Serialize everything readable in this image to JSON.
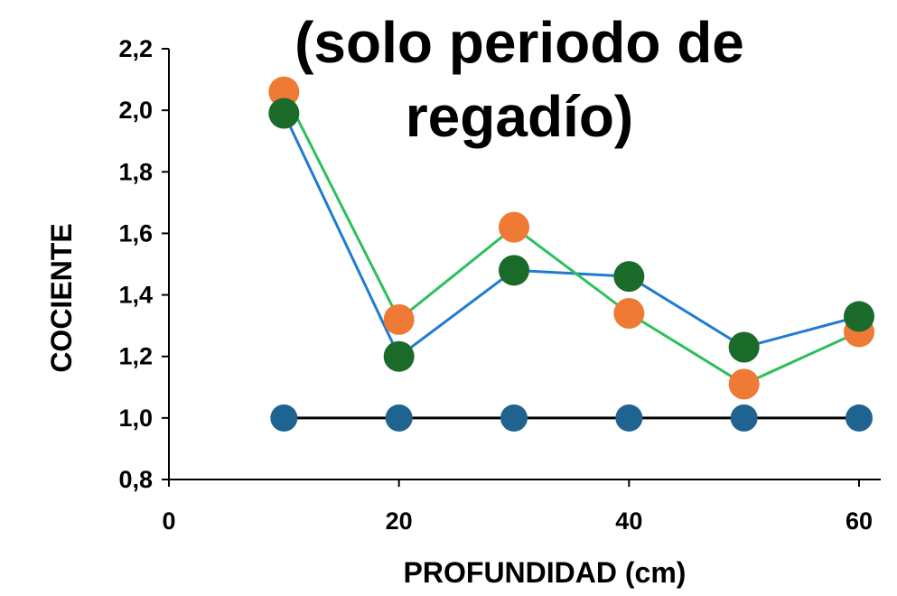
{
  "chart_data": {
    "type": "line",
    "title_lines": [
      "(solo periodo de",
      "regadío)"
    ],
    "xlabel": "PROFUNDIDAD (cm)",
    "ylabel": "COCIENTE",
    "xlim": [
      0,
      62
    ],
    "ylim": [
      0.8,
      2.2
    ],
    "x_ticks": [
      0,
      20,
      40,
      60
    ],
    "y_ticks": [
      0.8,
      1.0,
      1.2,
      1.4,
      1.6,
      1.8,
      2.0,
      2.2
    ],
    "y_tick_labels": [
      "0,8",
      "1,0",
      "1,2",
      "1,4",
      "1,6",
      "1,8",
      "2,0",
      "2,2"
    ],
    "grid": false,
    "legend": "none",
    "x": [
      10,
      20,
      30,
      40,
      50,
      60
    ],
    "series": [
      {
        "line_color": "#000000",
        "marker_color": "#1f6391",
        "values": [
          1.0,
          1.0,
          1.0,
          1.0,
          1.0,
          1.0
        ]
      },
      {
        "line_color": "#1f7bd0",
        "marker_color": "#1a6b2a",
        "values": [
          1.99,
          1.2,
          1.48,
          1.46,
          1.23,
          1.33
        ]
      },
      {
        "line_color": "#2cc05a",
        "marker_color": "#ee7a36",
        "values": [
          2.06,
          1.32,
          1.62,
          1.34,
          1.11,
          1.28
        ]
      }
    ]
  }
}
